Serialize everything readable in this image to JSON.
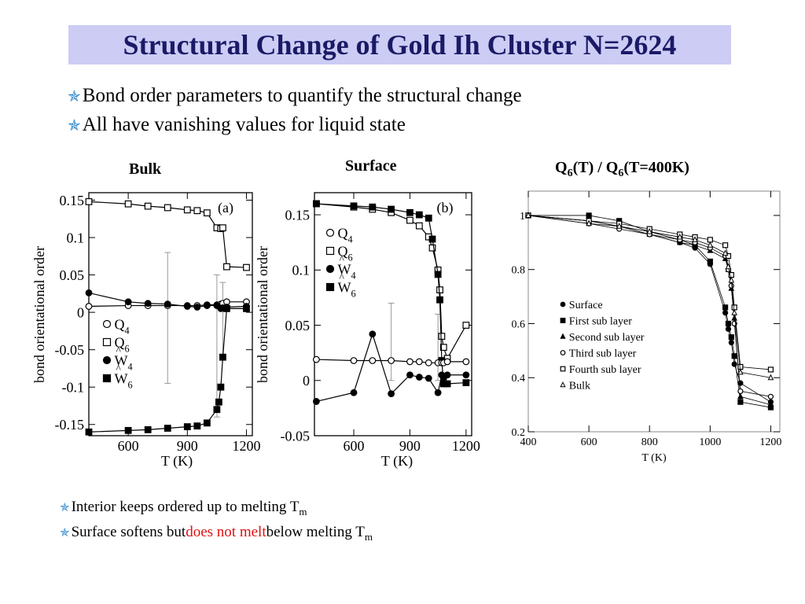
{
  "slide": {
    "title": "Structural Change of Gold Ih Cluster N=2624",
    "top_bullets": [
      "Bond order parameters to quantify the structural change",
      "All have vanishing values for liquid state"
    ],
    "bottom_bullets": [
      {
        "pre": "Interior keeps ordered up to melting T",
        "sub": "m",
        "highlight": "",
        "post": ""
      },
      {
        "pre": "Surface softens but ",
        "highlight": "does not melt",
        "post": " below melting T",
        "sub": "m"
      }
    ],
    "colors": {
      "title_bg": "#ccccf5",
      "title_text": "#1a1a66",
      "bullet_star": "#2b84c8",
      "highlight": "#e01010"
    }
  },
  "panel_headers": {
    "bulk": "Bulk",
    "surface": "Surface",
    "ratio": {
      "a": "Q",
      "a_sub": "6",
      "b": "(T) / Q",
      "b_sub": "6",
      "c": "(T=400K)"
    }
  },
  "chart_data": [
    {
      "type": "line",
      "panel_label": "(a)",
      "xlabel": "T (K)",
      "ylabel": "bond orientational order",
      "xlim": [
        400,
        1230
      ],
      "ylim": [
        -0.165,
        0.16
      ],
      "xticks": [
        600,
        900,
        1200
      ],
      "xtick_labels": [
        "600",
        "900",
        "1200"
      ],
      "yticks": [
        -0.15,
        -0.1,
        -0.05,
        0,
        0.05,
        0.1,
        0.15
      ],
      "ytick_labels": [
        "-0.15",
        "-0.1",
        "-0.05",
        "0",
        "0.05",
        "0.1",
        "0.15"
      ],
      "legend": [
        {
          "label": "Q",
          "sub": "4",
          "marker": "open-circle"
        },
        {
          "label": "Q",
          "sub": "6",
          "marker": "open-square"
        },
        {
          "label": "W",
          "sub": "4",
          "hat": true,
          "marker": "filled-circle"
        },
        {
          "label": "W",
          "sub": "6",
          "hat": true,
          "marker": "filled-square"
        }
      ],
      "series": [
        {
          "marker": "open-square",
          "x": [
            400,
            600,
            700,
            800,
            900,
            950,
            1000,
            1050,
            1070,
            1080,
            1100,
            1200
          ],
          "y": [
            0.148,
            0.145,
            0.142,
            0.14,
            0.137,
            0.136,
            0.133,
            0.113,
            0.112,
            0.113,
            0.061,
            0.06
          ]
        },
        {
          "marker": "open-circle",
          "x": [
            400,
            600,
            700,
            800,
            900,
            950,
            1000,
            1050,
            1070,
            1080,
            1100,
            1200
          ],
          "y": [
            0.008,
            0.009,
            0.009,
            0.009,
            0.009,
            0.009,
            0.01,
            0.01,
            0.011,
            0.012,
            0.014,
            0.014
          ]
        },
        {
          "marker": "filled-circle",
          "x": [
            400,
            600,
            700,
            800,
            900,
            950,
            1000,
            1050,
            1070,
            1080,
            1100,
            1200
          ],
          "y": [
            0.026,
            0.014,
            0.012,
            0.011,
            0.008,
            0.007,
            0.009,
            0.009,
            0.005,
            0.006,
            0.007,
            0.008
          ]
        },
        {
          "marker": "filled-square",
          "x": [
            400,
            600,
            700,
            800,
            900,
            950,
            1000,
            1050,
            1060,
            1070,
            1080,
            1100,
            1200
          ],
          "y": [
            -0.16,
            -0.158,
            -0.157,
            -0.155,
            -0.153,
            -0.152,
            -0.148,
            -0.13,
            -0.12,
            -0.1,
            -0.06,
            0.005,
            0.005
          ]
        }
      ],
      "errorbars": [
        {
          "x": 800,
          "y_low": -0.095,
          "y_high": 0.08
        },
        {
          "x": 1050,
          "y_low": -0.14,
          "y_high": 0.05
        },
        {
          "x": 1080,
          "y_low": -0.06,
          "y_high": 0.04
        }
      ]
    },
    {
      "type": "line",
      "panel_label": "(b)",
      "xlabel": "T (K)",
      "ylabel": "bond orientational order",
      "xlim": [
        390,
        1230
      ],
      "ylim": [
        -0.05,
        0.17
      ],
      "xticks": [
        600,
        900,
        1200
      ],
      "xtick_labels": [
        "600",
        "900",
        "1200"
      ],
      "yticks": [
        -0.05,
        0,
        0.05,
        0.1,
        0.15
      ],
      "ytick_labels": [
        "-0.05",
        "0",
        "0.05",
        "0.1",
        "0.15"
      ],
      "legend": [
        {
          "label": "Q",
          "sub": "4",
          "marker": "open-circle"
        },
        {
          "label": "Q",
          "sub": "6",
          "marker": "open-square"
        },
        {
          "label": "W",
          "sub": "4",
          "hat": true,
          "marker": "filled-circle"
        },
        {
          "label": "W",
          "sub": "6",
          "hat": true,
          "marker": "filled-square"
        }
      ],
      "series": [
        {
          "marker": "open-square",
          "x": [
            400,
            600,
            700,
            800,
            900,
            950,
            1000,
            1020,
            1050,
            1060,
            1070,
            1080,
            1100,
            1200
          ],
          "y": [
            0.16,
            0.157,
            0.155,
            0.152,
            0.145,
            0.14,
            0.13,
            0.12,
            0.1,
            0.082,
            0.04,
            0.03,
            0.02,
            0.05
          ]
        },
        {
          "marker": "filled-square",
          "x": [
            400,
            600,
            700,
            800,
            900,
            950,
            1000,
            1020,
            1050,
            1060,
            1070,
            1080,
            1100,
            1200
          ],
          "y": [
            0.16,
            0.158,
            0.157,
            0.155,
            0.152,
            0.15,
            0.147,
            0.128,
            0.096,
            0.073,
            0.018,
            -0.003,
            -0.003,
            -0.002
          ]
        },
        {
          "marker": "open-circle",
          "x": [
            400,
            600,
            700,
            800,
            900,
            950,
            1000,
            1050,
            1070,
            1080,
            1100,
            1200
          ],
          "y": [
            0.019,
            0.018,
            0.018,
            0.018,
            0.017,
            0.017,
            0.016,
            0.016,
            0.016,
            0.016,
            0.017,
            0.017
          ]
        },
        {
          "marker": "filled-circle",
          "x": [
            400,
            600,
            700,
            800,
            900,
            950,
            1000,
            1050,
            1070,
            1080,
            1100,
            1200
          ],
          "y": [
            -0.019,
            -0.011,
            0.042,
            -0.012,
            0.005,
            0.003,
            0.002,
            -0.011,
            0.005,
            0.002,
            0.005,
            0.005
          ]
        }
      ],
      "errorbars": [
        {
          "x": 800,
          "y_low": 0.0,
          "y_high": 0.07
        },
        {
          "x": 1050,
          "y_low": 0.0,
          "y_high": 0.06
        }
      ]
    },
    {
      "type": "line",
      "xlabel": "T (K)",
      "ylabel": "",
      "xlim": [
        400,
        1230
      ],
      "ylim": [
        0.2,
        1.09
      ],
      "xticks": [
        400,
        600,
        800,
        1000,
        1200
      ],
      "xtick_labels": [
        "400",
        "600",
        "800",
        "1000",
        "1200"
      ],
      "yticks": [
        0.2,
        0.4,
        0.6,
        0.8,
        1
      ],
      "ytick_labels": [
        "0.2",
        "0.4",
        "0.6",
        "0.8",
        "1"
      ],
      "legend": [
        {
          "label": "Surface",
          "marker": "filled-circle"
        },
        {
          "label": "First sub layer",
          "marker": "filled-square"
        },
        {
          "label": "Second sub layer",
          "marker": "filled-triangle"
        },
        {
          "label": "Third sub layer",
          "marker": "open-circle"
        },
        {
          "label": "Fourth sub layer",
          "marker": "open-square"
        },
        {
          "label": "Bulk",
          "marker": "open-triangle"
        }
      ],
      "series": [
        {
          "name": "Surface",
          "marker": "filled-circle",
          "x": [
            400,
            600,
            700,
            800,
            900,
            950,
            1000,
            1050,
            1060,
            1070,
            1080,
            1100,
            1200
          ],
          "y": [
            1.0,
            0.98,
            0.96,
            0.93,
            0.9,
            0.88,
            0.82,
            0.64,
            0.58,
            0.53,
            0.45,
            0.38,
            0.31
          ]
        },
        {
          "name": "First sub layer",
          "marker": "filled-square",
          "x": [
            400,
            600,
            700,
            800,
            900,
            950,
            1000,
            1050,
            1060,
            1070,
            1080,
            1100,
            1200
          ],
          "y": [
            1.0,
            1.0,
            0.98,
            0.94,
            0.91,
            0.89,
            0.83,
            0.66,
            0.6,
            0.55,
            0.48,
            0.31,
            0.29
          ]
        },
        {
          "name": "Second sub layer",
          "marker": "filled-triangle",
          "x": [
            400,
            600,
            700,
            800,
            900,
            950,
            1000,
            1050,
            1060,
            1070,
            1080,
            1100,
            1200
          ],
          "y": [
            1.0,
            0.98,
            0.96,
            0.93,
            0.9,
            0.89,
            0.87,
            0.84,
            0.8,
            0.73,
            0.62,
            0.33,
            0.3
          ]
        },
        {
          "name": "Third sub layer",
          "marker": "open-circle",
          "x": [
            400,
            600,
            700,
            800,
            900,
            950,
            1000,
            1050,
            1060,
            1070,
            1080,
            1100,
            1200
          ],
          "y": [
            1.0,
            0.97,
            0.95,
            0.93,
            0.91,
            0.9,
            0.88,
            0.85,
            0.8,
            0.74,
            0.6,
            0.35,
            0.33
          ]
        },
        {
          "name": "Fourth sub layer",
          "marker": "open-square",
          "x": [
            400,
            600,
            700,
            800,
            900,
            950,
            1000,
            1050,
            1060,
            1070,
            1080,
            1100,
            1200
          ],
          "y": [
            1.0,
            0.98,
            0.97,
            0.95,
            0.93,
            0.92,
            0.91,
            0.89,
            0.85,
            0.78,
            0.66,
            0.44,
            0.43
          ]
        },
        {
          "name": "Bulk",
          "marker": "open-triangle",
          "x": [
            400,
            600,
            700,
            800,
            900,
            950,
            1000,
            1050,
            1060,
            1070,
            1080,
            1100,
            1200
          ],
          "y": [
            1.0,
            0.97,
            0.96,
            0.94,
            0.92,
            0.91,
            0.89,
            0.86,
            0.81,
            0.76,
            0.64,
            0.42,
            0.4
          ]
        }
      ]
    }
  ]
}
